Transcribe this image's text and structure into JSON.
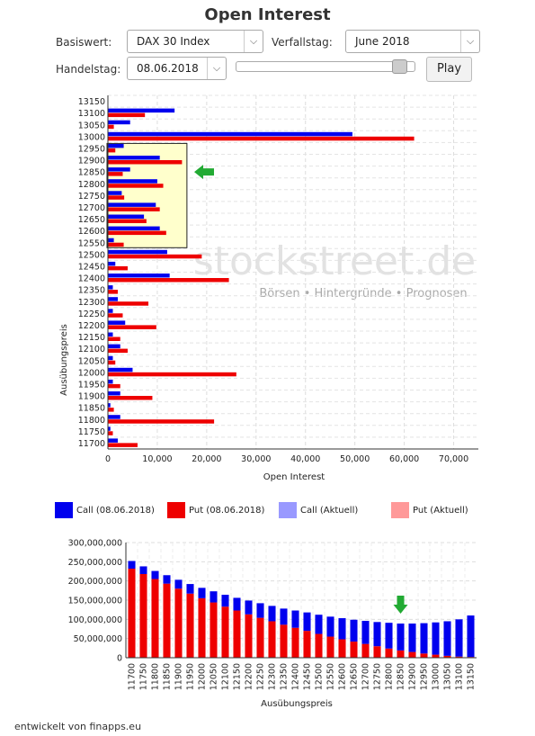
{
  "title": "Open Interest",
  "controls": {
    "basiswert_label": "Basiswert:",
    "basiswert_value": "DAX 30 Index",
    "verfallstag_label": "Verfallstag:",
    "verfallstag_value": "June 2018",
    "handelstag_label": "Handelstag:",
    "handelstag_value": "08.06.2018",
    "slider_position": 0.95,
    "play_label": "Play"
  },
  "watermark": {
    "main": "stockstreet.de",
    "sub": "Börsen • Hintergründe • Prognosen"
  },
  "colors": {
    "call": "#0000ee",
    "put": "#ee0000",
    "call_current": "#9999ff",
    "put_current": "#ff9999",
    "highlight": "#ffffcc",
    "arrow": "#22aa33"
  },
  "legend": [
    {
      "label": "Call (08.06.2018)",
      "color": "#0000ee"
    },
    {
      "label": "Put (08.06.2018)",
      "color": "#ee0000"
    },
    {
      "label": "Call (Aktuell)",
      "color": "#9999ff"
    },
    {
      "label": "Put (Aktuell)",
      "color": "#ff9999"
    }
  ],
  "chart_data": [
    {
      "type": "bar",
      "orientation": "horizontal",
      "xlabel": "Open Interest",
      "ylabel": "Ausübungspreis",
      "xlim": [
        0,
        75000
      ],
      "xticks": [
        "0",
        "10,000",
        "20,000",
        "30,000",
        "40,000",
        "50,000",
        "60,000",
        "70,000"
      ],
      "grid": true,
      "highlight_range": [
        "12550",
        "12950"
      ],
      "arrow_at": "12850",
      "categories": [
        "13150",
        "13100",
        "13050",
        "13000",
        "12950",
        "12900",
        "12850",
        "12800",
        "12750",
        "12700",
        "12650",
        "12600",
        "12550",
        "12500",
        "12450",
        "12400",
        "12350",
        "12300",
        "12250",
        "12200",
        "12150",
        "12100",
        "12050",
        "12000",
        "11950",
        "11900",
        "11850",
        "11800",
        "11750",
        "11700"
      ],
      "series": [
        {
          "name": "Call (08.06.2018)",
          "values": [
            0,
            13500,
            4500,
            49500,
            3200,
            10500,
            4500,
            10000,
            2800,
            9700,
            7300,
            10500,
            1200,
            12000,
            1500,
            12500,
            1000,
            2000,
            1000,
            3500,
            1000,
            2500,
            1000,
            5000,
            1000,
            2500,
            500,
            2500,
            500,
            2000
          ]
        },
        {
          "name": "Put (08.06.2018)",
          "values": [
            0,
            7500,
            1200,
            62000,
            1500,
            15000,
            3000,
            11200,
            3300,
            10500,
            7800,
            11800,
            3200,
            19000,
            4000,
            24500,
            2000,
            8200,
            3000,
            9800,
            2500,
            4000,
            1500,
            26000,
            2500,
            9000,
            1200,
            21500,
            1000,
            6000
          ]
        }
      ]
    },
    {
      "type": "bar",
      "stacked": true,
      "xlabel": "Ausübungspreis",
      "ylabel": "",
      "ylim": [
        0,
        300000000
      ],
      "yticks": [
        "0",
        "50,000,000",
        "100,000,000",
        "150,000,000",
        "200,000,000",
        "250,000,000",
        "300,000,000"
      ],
      "grid": true,
      "arrow_at": "12850",
      "categories": [
        "11700",
        "11750",
        "11800",
        "11850",
        "11900",
        "11950",
        "12000",
        "12050",
        "12100",
        "12150",
        "12200",
        "12250",
        "12300",
        "12350",
        "12400",
        "12450",
        "12500",
        "12550",
        "12600",
        "12650",
        "12700",
        "12750",
        "12800",
        "12850",
        "12900",
        "12950",
        "13000",
        "13050",
        "13100",
        "13150"
      ],
      "series": [
        {
          "name": "Put (08.06.2018)",
          "values": [
            232000000,
            218000000,
            205000000,
            193000000,
            180000000,
            167000000,
            155000000,
            144000000,
            133000000,
            123000000,
            113000000,
            104000000,
            95000000,
            86000000,
            78000000,
            70000000,
            62000000,
            55000000,
            48000000,
            42000000,
            36000000,
            30000000,
            24000000,
            19000000,
            15000000,
            11000000,
            8000000,
            5000000,
            3000000,
            2000000
          ]
        },
        {
          "name": "Call (08.06.2018)",
          "values": [
            20000000,
            20000000,
            21000000,
            22000000,
            23000000,
            25000000,
            27000000,
            29000000,
            31000000,
            33000000,
            36000000,
            38000000,
            40000000,
            42000000,
            45000000,
            48000000,
            50000000,
            52000000,
            55000000,
            57000000,
            60000000,
            63000000,
            67000000,
            70000000,
            74000000,
            79000000,
            84000000,
            90000000,
            97000000,
            108000000
          ]
        }
      ]
    }
  ],
  "footer": "entwickelt von finapps.eu"
}
